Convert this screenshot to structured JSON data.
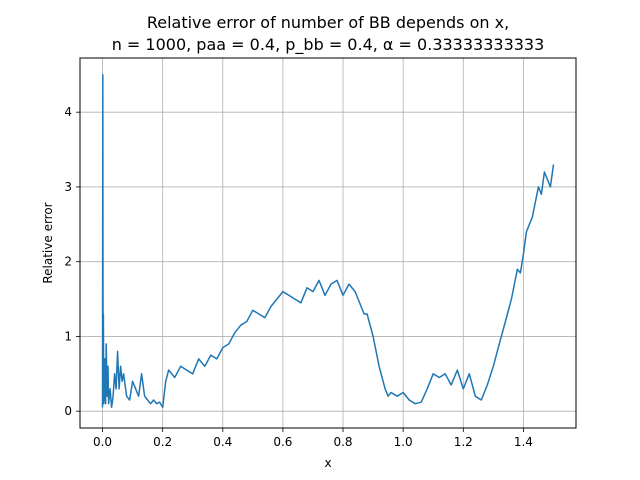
{
  "chart_data": {
    "type": "line",
    "title_line1": "Relative error of number of BB depends on x,",
    "title_line2": "n = 1000, paa = 0.4, p_bb = 0.4, α = 0.33333333333",
    "xlabel": "x",
    "ylabel": "Relative error",
    "xlim": [
      -0.075,
      1.575
    ],
    "ylim": [
      -0.225,
      4.725
    ],
    "xticks": [
      0.0,
      0.2,
      0.4,
      0.6,
      0.8,
      1.0,
      1.2,
      1.4
    ],
    "xtick_labels": [
      "0.0",
      "0.2",
      "0.4",
      "0.6",
      "0.8",
      "1.0",
      "1.2",
      "1.4"
    ],
    "yticks": [
      0,
      1,
      2,
      3,
      4
    ],
    "ytick_labels": [
      "0",
      "1",
      "2",
      "3",
      "4"
    ],
    "grid": true,
    "series": [
      {
        "color": "#1f77b4",
        "x": [
          0.0,
          0.001,
          0.002,
          0.003,
          0.004,
          0.006,
          0.008,
          0.01,
          0.012,
          0.015,
          0.018,
          0.02,
          0.025,
          0.03,
          0.035,
          0.04,
          0.045,
          0.05,
          0.055,
          0.06,
          0.065,
          0.07,
          0.08,
          0.09,
          0.1,
          0.11,
          0.12,
          0.13,
          0.14,
          0.15,
          0.16,
          0.17,
          0.18,
          0.19,
          0.2,
          0.21,
          0.22,
          0.24,
          0.26,
          0.28,
          0.3,
          0.32,
          0.34,
          0.36,
          0.38,
          0.4,
          0.42,
          0.44,
          0.46,
          0.48,
          0.5,
          0.52,
          0.54,
          0.56,
          0.58,
          0.6,
          0.62,
          0.64,
          0.66,
          0.68,
          0.7,
          0.72,
          0.74,
          0.76,
          0.78,
          0.8,
          0.82,
          0.84,
          0.86,
          0.87,
          0.88,
          0.9,
          0.92,
          0.94,
          0.95,
          0.96,
          0.98,
          1.0,
          1.02,
          1.04,
          1.06,
          1.08,
          1.1,
          1.12,
          1.14,
          1.16,
          1.18,
          1.2,
          1.22,
          1.24,
          1.26,
          1.28,
          1.3,
          1.32,
          1.34,
          1.36,
          1.37,
          1.38,
          1.39,
          1.4,
          1.41,
          1.42,
          1.43,
          1.44,
          1.45,
          1.46,
          1.47,
          1.48,
          1.49,
          1.5
        ],
        "y": [
          0.05,
          4.5,
          0.1,
          1.3,
          0.1,
          0.2,
          0.7,
          0.1,
          0.9,
          0.2,
          0.6,
          0.1,
          0.3,
          0.05,
          0.2,
          0.5,
          0.3,
          0.8,
          0.3,
          0.6,
          0.4,
          0.5,
          0.2,
          0.15,
          0.4,
          0.3,
          0.2,
          0.5,
          0.2,
          0.15,
          0.1,
          0.15,
          0.1,
          0.12,
          0.05,
          0.4,
          0.55,
          0.45,
          0.6,
          0.55,
          0.5,
          0.7,
          0.6,
          0.75,
          0.7,
          0.85,
          0.9,
          1.05,
          1.15,
          1.2,
          1.35,
          1.3,
          1.25,
          1.4,
          1.5,
          1.6,
          1.55,
          1.5,
          1.45,
          1.65,
          1.6,
          1.75,
          1.55,
          1.7,
          1.75,
          1.55,
          1.7,
          1.6,
          1.4,
          1.3,
          1.3,
          1.0,
          0.6,
          0.3,
          0.2,
          0.25,
          0.2,
          0.25,
          0.15,
          0.1,
          0.12,
          0.3,
          0.5,
          0.45,
          0.5,
          0.35,
          0.55,
          0.3,
          0.5,
          0.2,
          0.15,
          0.35,
          0.6,
          0.9,
          1.2,
          1.5,
          1.7,
          1.9,
          1.85,
          2.1,
          2.4,
          2.5,
          2.6,
          2.8,
          3.0,
          2.9,
          3.2,
          3.1,
          3.0,
          3.3
        ]
      }
    ]
  }
}
